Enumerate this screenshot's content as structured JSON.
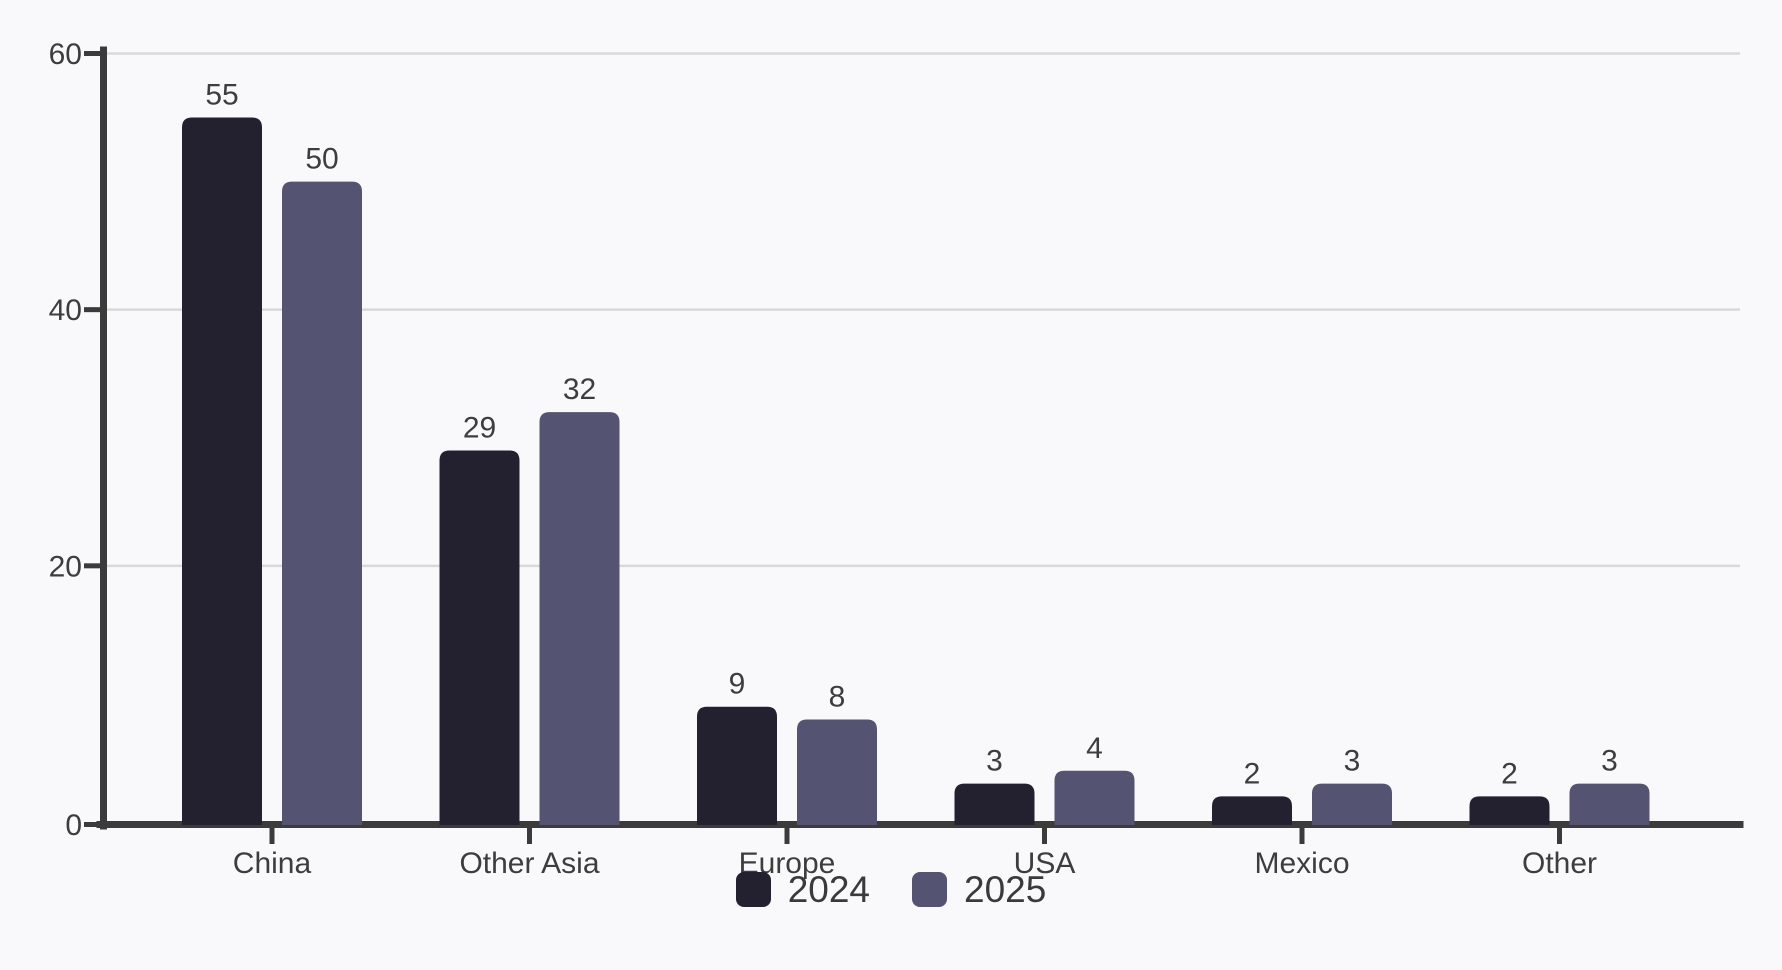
{
  "chart_data": {
    "type": "bar",
    "title": "",
    "xlabel": "",
    "ylabel": "",
    "categories": [
      "China",
      "Other Asia",
      "Europe",
      "USA",
      "Mexico",
      "Other"
    ],
    "series": [
      {
        "name": "2024",
        "color": "#232130",
        "values": [
          55,
          29,
          9,
          3,
          2,
          2
        ]
      },
      {
        "name": "2025",
        "color": "#555372",
        "values": [
          50,
          32,
          8,
          4,
          3,
          3
        ]
      }
    ],
    "y_ticks": [
      0,
      20,
      40,
      60
    ],
    "ylim": [
      0,
      60
    ],
    "grid": true,
    "value_labels": true,
    "legend_position": "bottom-center"
  },
  "colors": {
    "background": "#f9f9fb",
    "axis": "#3b3b3b",
    "gridline": "#d9d9d9",
    "text": "#3d3d3d",
    "series_2024": "#232130",
    "series_2025": "#555372"
  }
}
